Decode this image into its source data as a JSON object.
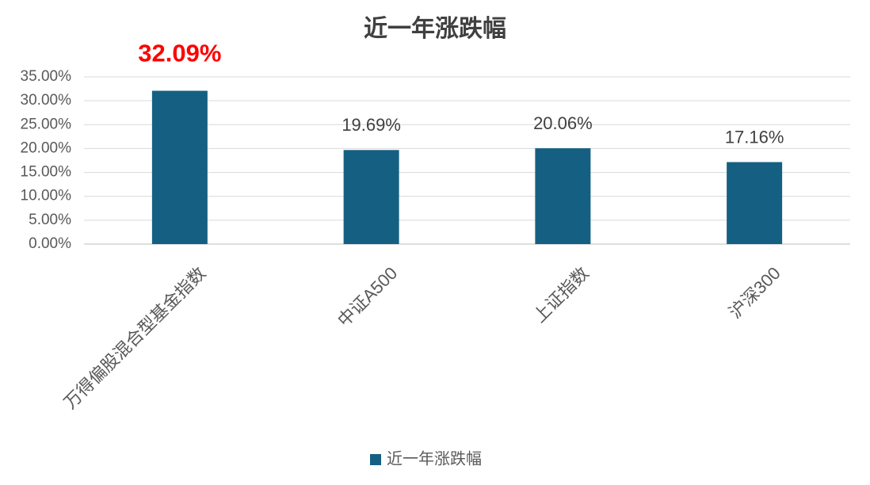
{
  "chart_data": {
    "type": "bar",
    "title": "近一年涨跌幅",
    "categories": [
      "万得偏股混合型基金指数",
      "中证A500",
      "上证指数",
      "沪深300"
    ],
    "series": [
      {
        "name": "近一年涨跌幅",
        "color": "#156082",
        "values": [
          32.09,
          19.69,
          20.06,
          17.16
        ],
        "value_labels": [
          "32.09%",
          "19.69%",
          "20.06%",
          "17.16%"
        ],
        "value_label_colors": [
          "#ff0000",
          "#404040",
          "#404040",
          "#404040"
        ]
      }
    ],
    "ylim": [
      0,
      35
    ],
    "yticks": [
      {
        "value": 0,
        "label": "0.00%"
      },
      {
        "value": 5,
        "label": "5.00%"
      },
      {
        "value": 10,
        "label": "10.00%"
      },
      {
        "value": 15,
        "label": "15.00%"
      },
      {
        "value": 20,
        "label": "20.00%"
      },
      {
        "value": 25,
        "label": "25.00%"
      },
      {
        "value": 30,
        "label": "30.00%"
      },
      {
        "value": 35,
        "label": "35.00%"
      }
    ],
    "grid": true,
    "legend": "bottom"
  }
}
